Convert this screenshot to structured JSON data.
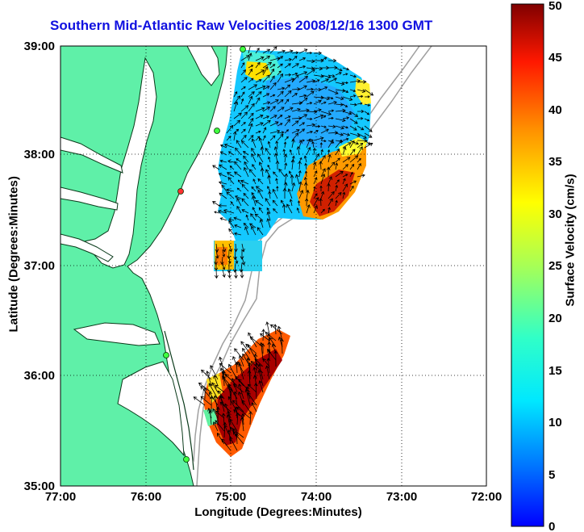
{
  "title": "Southern Mid-Atlantic Raw Velocities 2008/12/16 1300 GMT",
  "xlabel": "Longitude (Degrees:Minutes)",
  "ylabel": "Latitude (Degrees:Minutes)",
  "colorbar": {
    "label": "Surface Velocity (cm/s)",
    "range": [
      0,
      50
    ],
    "ticks": [
      "0",
      "5",
      "10",
      "15",
      "20",
      "25",
      "30",
      "35",
      "40",
      "45",
      "50"
    ]
  },
  "map": {
    "lon_ticks": [
      "77:00",
      "76:00",
      "75:00",
      "74:00",
      "73:00",
      "72:00"
    ],
    "lat_ticks": [
      "39:00",
      "38:00",
      "37:00",
      "36:00",
      "35:00"
    ],
    "lon_range": [
      -77,
      -72
    ],
    "lat_range": [
      35,
      39
    ],
    "land_color": "#5ff0a8",
    "grid": "dotted"
  }
}
